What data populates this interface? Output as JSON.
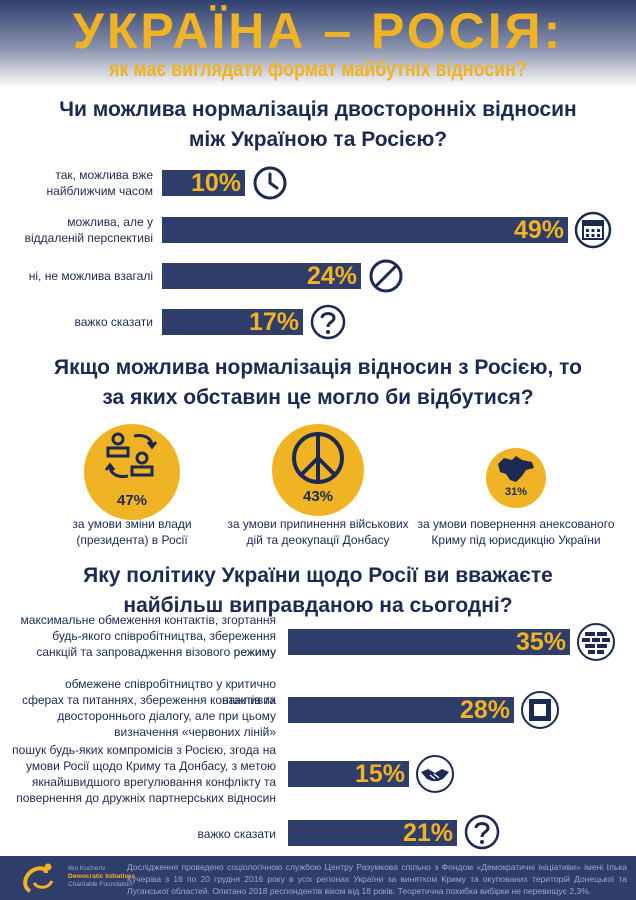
{
  "title": "УКРАЇНА – РОСІЯ:",
  "subtitle": "як має виглядати формат майбутніх відносин?",
  "q1": {
    "title_line1": "Чи можлива нормалізація двосторонніх відносин",
    "title_line2": "між Україною та Росією?"
  },
  "q2": {
    "title_line1": "Якщо можлива нормалізація відносин з Росією, то",
    "title_line2": "за яких обставин це могло би відбутися?"
  },
  "q3": {
    "title_line1": "Яку політику України щодо Росії ви вважаєте",
    "title_line2": "найбільш виправданою на сьогодні?"
  },
  "chart_data": [
    {
      "type": "bar",
      "title": "Чи можлива нормалізація двосторонніх відносин між Україною та Росією?",
      "categories": [
        "так, можлива вже найближчим часом",
        "можлива, але у віддаленій перспективі",
        "ні, не можлива взагалі",
        "важко сказати"
      ],
      "label_lines": [
        [
          "так, можлива вже",
          "найближчим часом"
        ],
        [
          "можлива, але у",
          "віддаленій перспективі"
        ],
        [
          "ні, не можлива взагалі"
        ],
        [
          "важко сказати"
        ]
      ],
      "values": [
        10,
        49,
        24,
        17
      ],
      "labels": [
        "10%",
        "49%",
        "24%",
        "17%"
      ],
      "icons": [
        "clock-icon",
        "calendar-icon",
        "prohibited-icon",
        "question-icon"
      ]
    },
    {
      "type": "bubble",
      "title": "Якщо можлива нормалізація відносин з Росією, то за яких обставин це могло би відбутися?",
      "categories": [
        "за умови зміни влади (президента) в Росії",
        "за умови припинення військових дій та деокупації Донбасу",
        "за умови повернення анексованого Криму під юрисдикцію України"
      ],
      "caption_lines": [
        [
          "за умови зміни влади",
          "(президента) в Росії"
        ],
        [
          "за умови припинення військових",
          "дій та деокупації Донбасу"
        ],
        [
          "за умови повернення анексованого",
          "Криму під юрисдикцію України"
        ]
      ],
      "values": [
        47,
        43,
        31
      ],
      "labels": [
        "47%",
        "43%",
        "31%"
      ],
      "icons": [
        "people-exchange-icon",
        "peace-icon",
        "crimea-map-icon"
      ]
    },
    {
      "type": "bar",
      "title": "Яку політику України щодо Росії ви вважаєте найбільш виправданою на сьогодні?",
      "categories": [
        "максимальне обмеження контактів, згортання будь-якого співробітництва, збереження режиму санкцій та запровадження візового режиму",
        "обмежене співробітництво у критично важливих сферах та питаннях, збереження контактів та двостороннього діалогу, але при цьому визначення «червоних ліній»",
        "пошук будь-яких компромісів з Росією, згода на умови Росії щодо Криму та Донбасу, з метою якнайшвидшого врегулювання конфлікту та повернення до дружніх партнерських відносин",
        "важко сказати"
      ],
      "label_lines": [
        [
          "максимальне обмеження контактів, згортання",
          "будь-якого співробітництва,  збереження режиму",
          "санкцій та запровадження візового режиму"
        ],
        [
          "обмежене співробітництво у критично важливих",
          "сферах та питаннях, збереження контактів та",
          "двостороннього діалогу, але при цьому",
          "визначення «червоних ліній»"
        ],
        [
          "пошук будь-яких компромісів з Росією, згода на",
          "умови   Росії щодо Криму та Донбасу, з метою",
          "якнайшвидшого врегулювання конфлікту та",
          "повернення до дружніх  партнерських  відносин"
        ],
        [
          "важко сказати"
        ]
      ],
      "values": [
        35,
        28,
        15,
        21
      ],
      "labels": [
        "35%",
        "28%",
        "15%",
        "21%"
      ],
      "icons": [
        "brick-wall-icon",
        "wall-gap-icon",
        "handshake-icon",
        "question-icon"
      ]
    }
  ],
  "footer": {
    "logo_line1": "Ilko Kucheriv",
    "logo_line2": "Democratic Initiatives",
    "logo_line3": "Charitable Foundation",
    "text": "Дослідження проведено соціологічною службою Центру Разумкова спільно з Фондом «Демократичні ініціативи» імені Ілька Кучеріва з 16 по 20 грудня 2016 року в усіх регіонах України за винятком Криму та окупованих територій Донецької та Луганської областей. Опитано 2018 респондентів віком від 18 років. Теоретична похибка вибірки не перевищує 2,3%."
  },
  "colors": {
    "navy": "#2f3d6b",
    "gold": "#f0b323",
    "text": "#1c2a52"
  }
}
